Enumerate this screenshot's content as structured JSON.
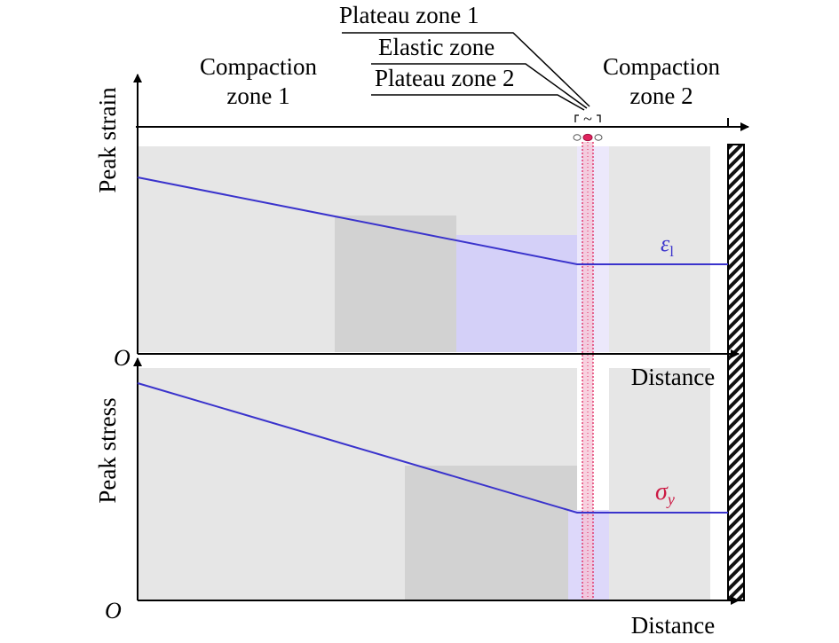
{
  "zones_top": {
    "plateau1": "Plateau zone 1",
    "elastic": "Elastic zone",
    "plateau2": "Plateau zone 2",
    "compaction1_line1": "Compaction",
    "compaction1_line2": "zone 1",
    "compaction2_line1": "Compaction",
    "compaction2_line2": "zone 2"
  },
  "top_plot": {
    "ylabel": "Peak strain",
    "xlabel": "Distance",
    "origin": "O",
    "curve_label": "ε",
    "curve_label_sub": "l"
  },
  "bottom_plot": {
    "ylabel": "Peak stress",
    "xlabel": "Distance",
    "origin": "O",
    "curve_label": "σ",
    "curve_label_sub": "y"
  },
  "colors": {
    "curve": "#3a33cc",
    "region_light": "#e6e6e6",
    "region_dark": "#d2d2d2",
    "region_blue": "#d4d0f8",
    "elastic_zone": "#e0245e",
    "label_accent": "#cc1a44"
  }
}
